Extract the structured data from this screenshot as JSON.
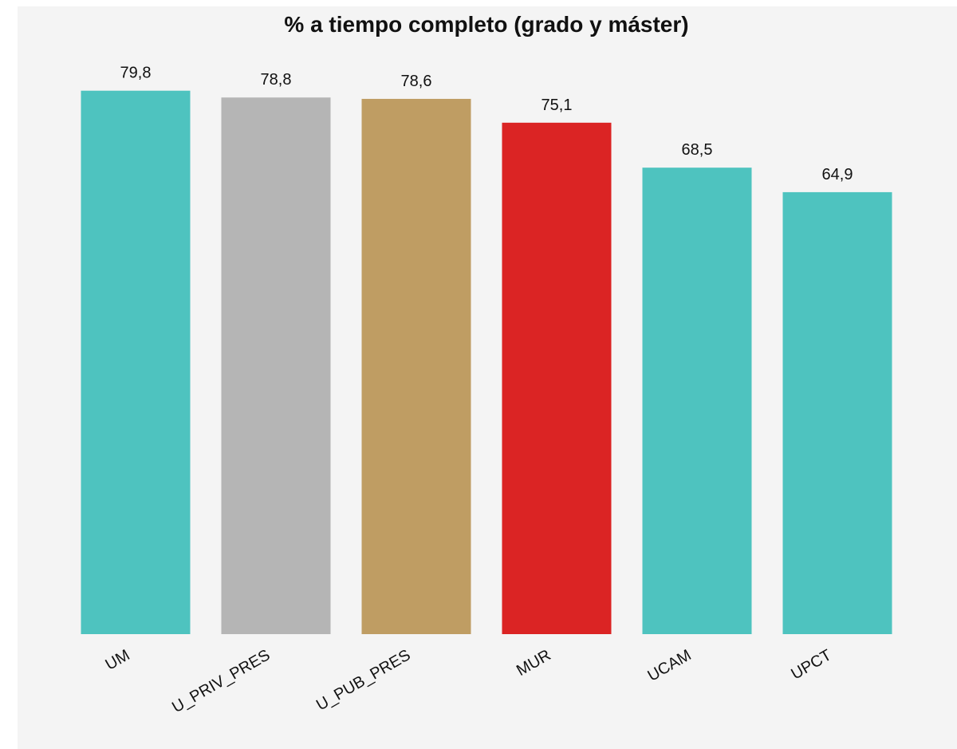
{
  "chart_data": {
    "type": "bar",
    "title": "% a tiempo completo (grado y máster)",
    "categories": [
      "UM",
      "U_PRIV_PRES",
      "U_PUB_PRES",
      "MUR",
      "UCAM",
      "UPCT"
    ],
    "values": [
      79.8,
      78.8,
      78.6,
      75.1,
      68.5,
      64.9
    ],
    "value_labels": [
      "79,8",
      "78,8",
      "78,6",
      "75,1",
      "68,5",
      "64,9"
    ],
    "colors": [
      "#4ec3bf",
      "#b5b5b5",
      "#bf9d63",
      "#db2424",
      "#4ec3bf",
      "#4ec3bf"
    ],
    "ylim": [
      0,
      80
    ],
    "grid": false
  }
}
